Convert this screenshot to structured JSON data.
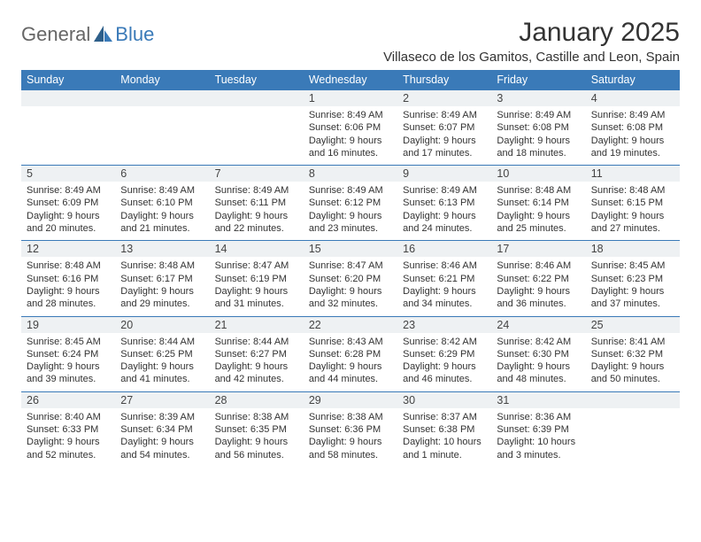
{
  "logo": {
    "text1": "General",
    "text2": "Blue"
  },
  "title": "January 2025",
  "location": "Villaseco de los Gamitos, Castille and Leon, Spain",
  "colors": {
    "header_bg": "#3a7ab8",
    "header_text": "#ffffff",
    "daynum_bg": "#eef1f3",
    "daynum_border": "#3a7ab8",
    "page_bg": "#ffffff",
    "text": "#333333",
    "logo_gray": "#666666",
    "logo_blue": "#3a7ab8"
  },
  "dow": [
    "Sunday",
    "Monday",
    "Tuesday",
    "Wednesday",
    "Thursday",
    "Friday",
    "Saturday"
  ],
  "weeks": [
    [
      null,
      null,
      null,
      {
        "n": "1",
        "sr": "Sunrise: 8:49 AM",
        "ss": "Sunset: 6:06 PM",
        "d1": "Daylight: 9 hours",
        "d2": "and 16 minutes."
      },
      {
        "n": "2",
        "sr": "Sunrise: 8:49 AM",
        "ss": "Sunset: 6:07 PM",
        "d1": "Daylight: 9 hours",
        "d2": "and 17 minutes."
      },
      {
        "n": "3",
        "sr": "Sunrise: 8:49 AM",
        "ss": "Sunset: 6:08 PM",
        "d1": "Daylight: 9 hours",
        "d2": "and 18 minutes."
      },
      {
        "n": "4",
        "sr": "Sunrise: 8:49 AM",
        "ss": "Sunset: 6:08 PM",
        "d1": "Daylight: 9 hours",
        "d2": "and 19 minutes."
      }
    ],
    [
      {
        "n": "5",
        "sr": "Sunrise: 8:49 AM",
        "ss": "Sunset: 6:09 PM",
        "d1": "Daylight: 9 hours",
        "d2": "and 20 minutes."
      },
      {
        "n": "6",
        "sr": "Sunrise: 8:49 AM",
        "ss": "Sunset: 6:10 PM",
        "d1": "Daylight: 9 hours",
        "d2": "and 21 minutes."
      },
      {
        "n": "7",
        "sr": "Sunrise: 8:49 AM",
        "ss": "Sunset: 6:11 PM",
        "d1": "Daylight: 9 hours",
        "d2": "and 22 minutes."
      },
      {
        "n": "8",
        "sr": "Sunrise: 8:49 AM",
        "ss": "Sunset: 6:12 PM",
        "d1": "Daylight: 9 hours",
        "d2": "and 23 minutes."
      },
      {
        "n": "9",
        "sr": "Sunrise: 8:49 AM",
        "ss": "Sunset: 6:13 PM",
        "d1": "Daylight: 9 hours",
        "d2": "and 24 minutes."
      },
      {
        "n": "10",
        "sr": "Sunrise: 8:48 AM",
        "ss": "Sunset: 6:14 PM",
        "d1": "Daylight: 9 hours",
        "d2": "and 25 minutes."
      },
      {
        "n": "11",
        "sr": "Sunrise: 8:48 AM",
        "ss": "Sunset: 6:15 PM",
        "d1": "Daylight: 9 hours",
        "d2": "and 27 minutes."
      }
    ],
    [
      {
        "n": "12",
        "sr": "Sunrise: 8:48 AM",
        "ss": "Sunset: 6:16 PM",
        "d1": "Daylight: 9 hours",
        "d2": "and 28 minutes."
      },
      {
        "n": "13",
        "sr": "Sunrise: 8:48 AM",
        "ss": "Sunset: 6:17 PM",
        "d1": "Daylight: 9 hours",
        "d2": "and 29 minutes."
      },
      {
        "n": "14",
        "sr": "Sunrise: 8:47 AM",
        "ss": "Sunset: 6:19 PM",
        "d1": "Daylight: 9 hours",
        "d2": "and 31 minutes."
      },
      {
        "n": "15",
        "sr": "Sunrise: 8:47 AM",
        "ss": "Sunset: 6:20 PM",
        "d1": "Daylight: 9 hours",
        "d2": "and 32 minutes."
      },
      {
        "n": "16",
        "sr": "Sunrise: 8:46 AM",
        "ss": "Sunset: 6:21 PM",
        "d1": "Daylight: 9 hours",
        "d2": "and 34 minutes."
      },
      {
        "n": "17",
        "sr": "Sunrise: 8:46 AM",
        "ss": "Sunset: 6:22 PM",
        "d1": "Daylight: 9 hours",
        "d2": "and 36 minutes."
      },
      {
        "n": "18",
        "sr": "Sunrise: 8:45 AM",
        "ss": "Sunset: 6:23 PM",
        "d1": "Daylight: 9 hours",
        "d2": "and 37 minutes."
      }
    ],
    [
      {
        "n": "19",
        "sr": "Sunrise: 8:45 AM",
        "ss": "Sunset: 6:24 PM",
        "d1": "Daylight: 9 hours",
        "d2": "and 39 minutes."
      },
      {
        "n": "20",
        "sr": "Sunrise: 8:44 AM",
        "ss": "Sunset: 6:25 PM",
        "d1": "Daylight: 9 hours",
        "d2": "and 41 minutes."
      },
      {
        "n": "21",
        "sr": "Sunrise: 8:44 AM",
        "ss": "Sunset: 6:27 PM",
        "d1": "Daylight: 9 hours",
        "d2": "and 42 minutes."
      },
      {
        "n": "22",
        "sr": "Sunrise: 8:43 AM",
        "ss": "Sunset: 6:28 PM",
        "d1": "Daylight: 9 hours",
        "d2": "and 44 minutes."
      },
      {
        "n": "23",
        "sr": "Sunrise: 8:42 AM",
        "ss": "Sunset: 6:29 PM",
        "d1": "Daylight: 9 hours",
        "d2": "and 46 minutes."
      },
      {
        "n": "24",
        "sr": "Sunrise: 8:42 AM",
        "ss": "Sunset: 6:30 PM",
        "d1": "Daylight: 9 hours",
        "d2": "and 48 minutes."
      },
      {
        "n": "25",
        "sr": "Sunrise: 8:41 AM",
        "ss": "Sunset: 6:32 PM",
        "d1": "Daylight: 9 hours",
        "d2": "and 50 minutes."
      }
    ],
    [
      {
        "n": "26",
        "sr": "Sunrise: 8:40 AM",
        "ss": "Sunset: 6:33 PM",
        "d1": "Daylight: 9 hours",
        "d2": "and 52 minutes."
      },
      {
        "n": "27",
        "sr": "Sunrise: 8:39 AM",
        "ss": "Sunset: 6:34 PM",
        "d1": "Daylight: 9 hours",
        "d2": "and 54 minutes."
      },
      {
        "n": "28",
        "sr": "Sunrise: 8:38 AM",
        "ss": "Sunset: 6:35 PM",
        "d1": "Daylight: 9 hours",
        "d2": "and 56 minutes."
      },
      {
        "n": "29",
        "sr": "Sunrise: 8:38 AM",
        "ss": "Sunset: 6:36 PM",
        "d1": "Daylight: 9 hours",
        "d2": "and 58 minutes."
      },
      {
        "n": "30",
        "sr": "Sunrise: 8:37 AM",
        "ss": "Sunset: 6:38 PM",
        "d1": "Daylight: 10 hours",
        "d2": "and 1 minute."
      },
      {
        "n": "31",
        "sr": "Sunrise: 8:36 AM",
        "ss": "Sunset: 6:39 PM",
        "d1": "Daylight: 10 hours",
        "d2": "and 3 minutes."
      },
      null
    ]
  ]
}
